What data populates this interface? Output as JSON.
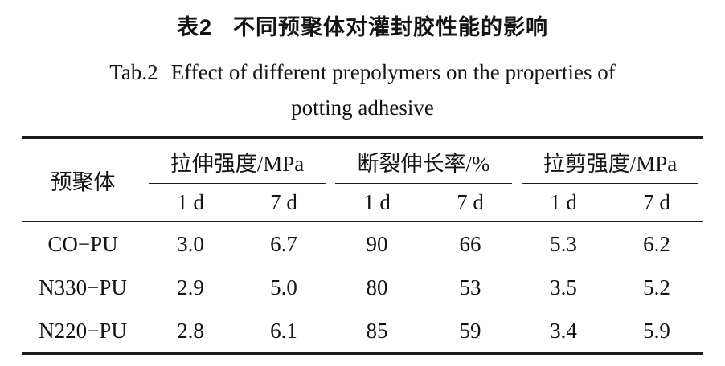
{
  "caption": {
    "zh_label": "表2",
    "zh_title": "不同预聚体对灌封胶性能的影响",
    "en_label": "Tab.2",
    "en_title_line1": "Effect of different prepolymers on the properties of",
    "en_title_line2": "potting adhesive"
  },
  "table": {
    "stub_header": "预聚体",
    "groups": [
      {
        "label": "拉伸强度/MPa",
        "sub": [
          "1 d",
          "7 d"
        ]
      },
      {
        "label": "断裂伸长率/%",
        "sub": [
          "1 d",
          "7 d"
        ]
      },
      {
        "label": "拉剪强度/MPa",
        "sub": [
          "1 d",
          "7 d"
        ]
      }
    ],
    "rows": [
      {
        "name": "CO−PU",
        "values": [
          "3.0",
          "6.7",
          "90",
          "66",
          "5.3",
          "6.2"
        ]
      },
      {
        "name": "N330−PU",
        "values": [
          "2.9",
          "5.0",
          "80",
          "53",
          "3.5",
          "5.2"
        ]
      },
      {
        "name": "N220−PU",
        "values": [
          "2.8",
          "6.1",
          "85",
          "59",
          "3.4",
          "5.9"
        ]
      }
    ]
  }
}
